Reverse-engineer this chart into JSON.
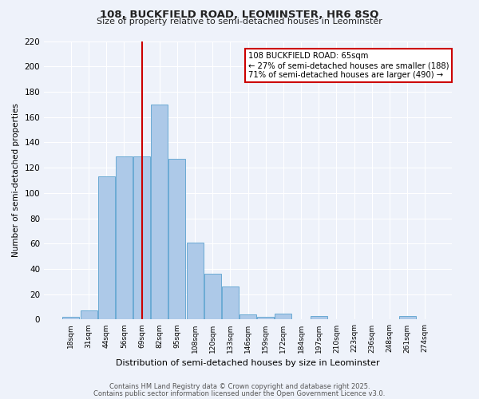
{
  "title": "108, BUCKFIELD ROAD, LEOMINSTER, HR6 8SQ",
  "subtitle": "Size of property relative to semi-detached houses in Leominster",
  "xlabel": "Distribution of semi-detached houses by size in Leominster",
  "ylabel": "Number of semi-detached properties",
  "categories": [
    "18sqm",
    "31sqm",
    "44sqm",
    "56sqm",
    "69sqm",
    "82sqm",
    "95sqm",
    "108sqm",
    "120sqm",
    "133sqm",
    "146sqm",
    "159sqm",
    "172sqm",
    "184sqm",
    "197sqm",
    "210sqm",
    "223sqm",
    "236sqm",
    "248sqm",
    "261sqm",
    "274sqm"
  ],
  "bar_values": [
    2,
    7,
    113,
    129,
    129,
    170,
    127,
    61,
    36,
    26,
    4,
    2,
    5,
    0,
    3,
    0,
    0,
    0,
    0,
    3,
    0
  ],
  "bar_color": "#adc9e8",
  "bar_edge_color": "#6aaad4",
  "ylim": [
    0,
    220
  ],
  "yticks": [
    0,
    20,
    40,
    60,
    80,
    100,
    120,
    140,
    160,
    180,
    200,
    220
  ],
  "property_bin_index": 4,
  "vline_color": "#cc0000",
  "annotation_title": "108 BUCKFIELD ROAD: 65sqm",
  "annotation_line1": "← 27% of semi-detached houses are smaller (188)",
  "annotation_line2": "71% of semi-detached houses are larger (490) →",
  "annotation_box_facecolor": "#ffffff",
  "annotation_box_edgecolor": "#cc0000",
  "bg_color": "#eef2fa",
  "grid_color": "#ffffff",
  "footer1": "Contains HM Land Registry data © Crown copyright and database right 2025.",
  "footer2": "Contains public sector information licensed under the Open Government Licence v3.0."
}
